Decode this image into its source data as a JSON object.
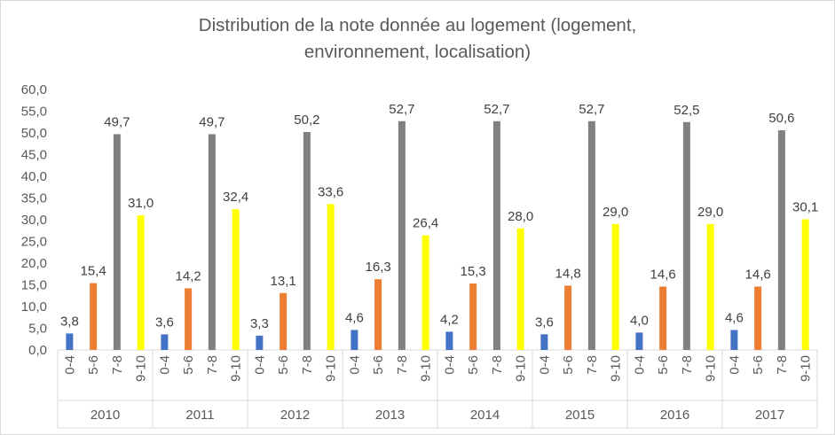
{
  "chart_data": {
    "type": "bar",
    "title_line1": "Distribution de la note donnée au logement (logement,",
    "title_line2": "environnement, localisation)",
    "xlabel": "",
    "ylabel": "",
    "ylim": [
      0,
      60
    ],
    "yticks": [
      "0,0",
      "5,0",
      "10,0",
      "15,0",
      "20,0",
      "25,0",
      "30,0",
      "35,0",
      "40,0",
      "45,0",
      "50,0",
      "55,0",
      "60,0"
    ],
    "grid": false,
    "legend": "none",
    "groups": [
      "2010",
      "2011",
      "2012",
      "2013",
      "2014",
      "2015",
      "2016",
      "2017"
    ],
    "categories": [
      "0-4",
      "5-6",
      "7-8",
      "9-10"
    ],
    "colors": [
      "#4472c4",
      "#ed7d31",
      "#808080",
      "#ffff00"
    ],
    "values": [
      [
        3.8,
        15.4,
        49.7,
        31.0
      ],
      [
        3.6,
        14.2,
        49.7,
        32.4
      ],
      [
        3.3,
        13.1,
        50.2,
        33.6
      ],
      [
        4.6,
        16.3,
        52.7,
        26.4
      ],
      [
        4.2,
        15.3,
        52.7,
        28.0
      ],
      [
        3.6,
        14.8,
        52.7,
        29.0
      ],
      [
        4.0,
        14.6,
        52.5,
        29.0
      ],
      [
        4.6,
        14.6,
        50.6,
        30.1
      ]
    ],
    "labels": [
      [
        "3,8",
        "15,4",
        "49,7",
        "31,0"
      ],
      [
        "3,6",
        "14,2",
        "49,7",
        "32,4"
      ],
      [
        "3,3",
        "13,1",
        "50,2",
        "33,6"
      ],
      [
        "4,6",
        "16,3",
        "52,7",
        "26,4"
      ],
      [
        "4,2",
        "15,3",
        "52,7",
        "28,0"
      ],
      [
        "3,6",
        "14,8",
        "52,7",
        "29,0"
      ],
      [
        "4,0",
        "14,6",
        "52,5",
        "29,0"
      ],
      [
        "4,6",
        "14,6",
        "50,6",
        "30,1"
      ]
    ]
  }
}
